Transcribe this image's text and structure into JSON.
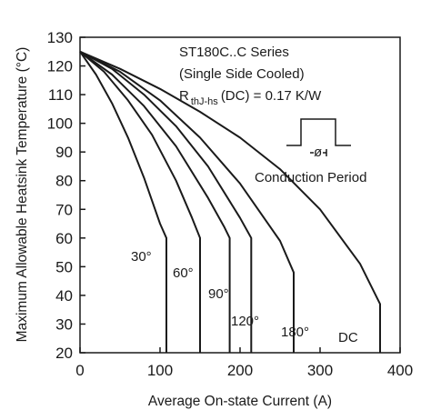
{
  "chart_data": {
    "type": "line",
    "xlabel": "Average On-state Current (A)",
    "ylabel": "Maximum Allowable Heatsink Temperature (°C)",
    "xlim": [
      0,
      400
    ],
    "ylim": [
      20,
      130
    ],
    "x_ticks": [
      "0",
      "100",
      "200",
      "300",
      "400"
    ],
    "y_ticks": [
      "20",
      "30",
      "40",
      "50",
      "60",
      "70",
      "80",
      "90",
      "100",
      "110",
      "120",
      "130"
    ],
    "grid": false,
    "annotations": {
      "line1": "ST180C..C Series",
      "line2": "(Single Side Cooled)",
      "r_prefix": "R",
      "r_subscript": "thJ-hs",
      "r_suffix": "(DC) = 0.17 K/W",
      "waveform_label": "Conduction Period",
      "phi_symbol": "ø"
    },
    "series": [
      {
        "name": "30°",
        "x": [
          0,
          20,
          40,
          60,
          80,
          100,
          108,
          108
        ],
        "y": [
          125,
          117,
          107,
          95,
          81,
          65,
          60,
          20
        ]
      },
      {
        "name": "60°",
        "x": [
          0,
          30,
          60,
          90,
          120,
          140,
          150,
          150
        ],
        "y": [
          125,
          118,
          108,
          96,
          80,
          67,
          60,
          20
        ]
      },
      {
        "name": "90°",
        "x": [
          0,
          40,
          80,
          120,
          160,
          180,
          187,
          187
        ],
        "y": [
          125,
          117,
          106,
          92,
          74,
          64,
          60,
          20
        ]
      },
      {
        "name": "120°",
        "x": [
          0,
          40,
          80,
          120,
          160,
          200,
          214,
          214
        ],
        "y": [
          125,
          119,
          110,
          99,
          85,
          67,
          60,
          20
        ]
      },
      {
        "name": "180°",
        "x": [
          0,
          50,
          100,
          150,
          200,
          250,
          267,
          267
        ],
        "y": [
          125,
          118,
          108,
          95,
          79,
          59,
          48,
          20
        ]
      },
      {
        "name": "DC",
        "x": [
          0,
          50,
          100,
          150,
          200,
          250,
          300,
          350,
          375,
          375
        ],
        "y": [
          125,
          119,
          112,
          104,
          95,
          84,
          70,
          51,
          37,
          20
        ]
      }
    ]
  }
}
